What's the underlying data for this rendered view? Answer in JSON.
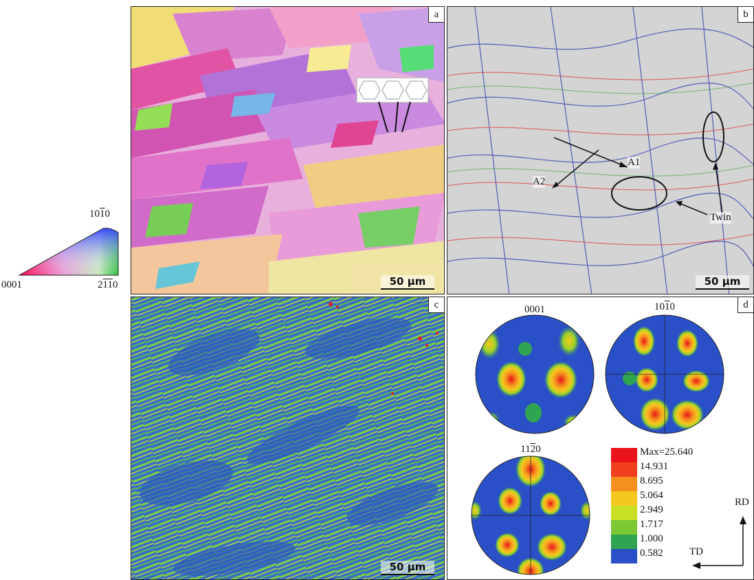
{
  "ipf_legend": {
    "top_label": "10̅1̅0",
    "left_label": "0001",
    "right_label": "2̅1̅1̅0",
    "top_label_text": "10",
    "top_label_bar": "1",
    "top_label_tail": "0",
    "right_label_head": "2",
    "right_label_bar": "11",
    "right_label_tail": "0"
  },
  "panels": {
    "a": {
      "tag": "a",
      "scale": "50 μm"
    },
    "b": {
      "tag": "b",
      "scale": "50 μm",
      "annotations": {
        "a1": "A1",
        "a2": "A2",
        "twin": "Twin"
      }
    },
    "c": {
      "tag": "c",
      "scale": "50 μm"
    },
    "d": {
      "tag": "d",
      "pole_figures": {
        "pf1": "0001",
        "pf2_head": "10",
        "pf2_bar": "1",
        "pf2_tail": "0",
        "pf3_head": "11",
        "pf3_bar": "2",
        "pf3_tail": "0"
      },
      "legend": {
        "values": [
          "Max=25.640",
          "14.931",
          "8.695",
          "5.064",
          "2.949",
          "1.717",
          "1.000",
          "0.582"
        ],
        "colors": [
          "#e8141a",
          "#f2401f",
          "#f5901f",
          "#f5c81f",
          "#c8e025",
          "#7cc832",
          "#2fa552",
          "#2a50c8"
        ]
      },
      "axes": {
        "rd": "RD",
        "td": "TD"
      }
    }
  }
}
